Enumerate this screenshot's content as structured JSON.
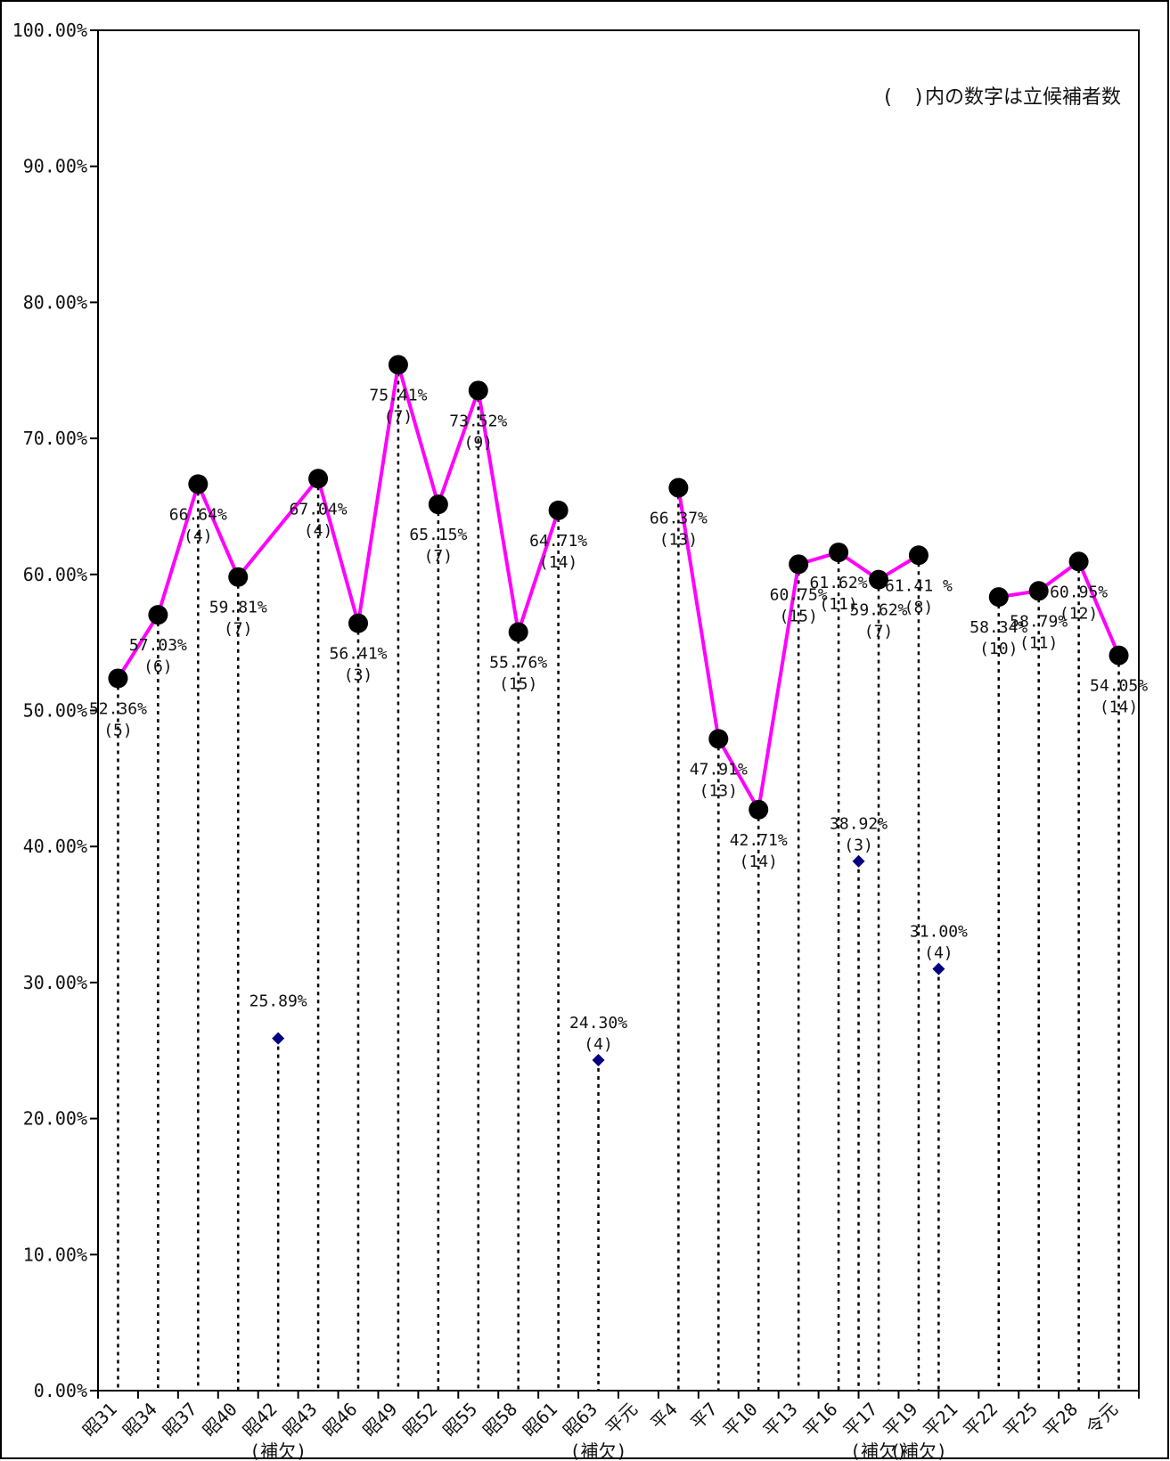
{
  "chart_data": {
    "type": "line",
    "note": "(　)内の数字は立候補者数",
    "ylim": [
      0,
      1.0
    ],
    "y_ticks": [
      "0.00%",
      "10.00%",
      "20.00%",
      "30.00%",
      "40.00%",
      "50.00%",
      "60.00%",
      "70.00%",
      "80.00%",
      "90.00%",
      "100.00%"
    ],
    "y_tick_values": [
      0,
      0.1,
      0.2,
      0.3,
      0.4,
      0.5,
      0.6,
      0.7,
      0.8,
      0.9,
      1.0
    ],
    "x_labels": [
      "昭31",
      "昭34",
      "昭37",
      "昭40",
      "昭42",
      "昭43",
      "昭46",
      "昭49",
      "昭52",
      "昭55",
      "昭58",
      "昭61",
      "昭63",
      "平元",
      "平4",
      "平7",
      "平10",
      "平13",
      "平16",
      "平17",
      "平19",
      "平21",
      "平22",
      "平25",
      "平28",
      "令元"
    ],
    "x_sublabels": [
      "",
      "",
      "",
      "",
      "(補欠)",
      "",
      "",
      "",
      "",
      "",
      "",
      "",
      "(補欠)",
      "",
      "",
      "",
      "",
      "",
      "",
      "(補欠)",
      "(補欠)",
      "",
      "",
      "",
      "",
      ""
    ],
    "series": [
      {
        "marker": "circle",
        "color": "#ff00ff",
        "points": [
          {
            "x": 0,
            "y": 52.36,
            "label": "52.36%",
            "count": "(5)"
          },
          {
            "x": 1,
            "y": 57.03,
            "label": "57.03%",
            "count": "(6)"
          },
          {
            "x": 2,
            "y": 66.64,
            "label": "66.64%",
            "count": "(4)"
          },
          {
            "x": 3,
            "y": 59.81,
            "label": "59.81%",
            "count": "(7)"
          },
          null,
          {
            "x": 5,
            "y": 67.04,
            "label": "67.04%",
            "count": "(4)"
          },
          {
            "x": 6,
            "y": 56.41,
            "label": "56.41%",
            "count": "(3)"
          },
          {
            "x": 7,
            "y": 75.41,
            "label": "75.41%",
            "count": "(7)"
          },
          {
            "x": 8,
            "y": 65.15,
            "label": "65.15%",
            "count": "(7)"
          },
          {
            "x": 9,
            "y": 73.52,
            "label": "73.52%",
            "count": "(9)"
          },
          {
            "x": 10,
            "y": 55.76,
            "label": "55.76%",
            "count": "(15)"
          },
          {
            "x": 11,
            "y": 64.71,
            "label": "64.71%",
            "count": "(14)"
          }
        ]
      },
      {
        "marker": "circle",
        "color": "#ff00ff",
        "points": [
          {
            "x": 14,
            "y": 66.37,
            "label": "66.37%",
            "count": "(13)"
          },
          {
            "x": 15,
            "y": 47.91,
            "label": "47.91%",
            "count": "(13)"
          },
          {
            "x": 16,
            "y": 42.71,
            "label": "42.71%",
            "count": "(14)"
          },
          {
            "x": 17,
            "y": 60.75,
            "label": "60.75%",
            "count": "(15)"
          },
          {
            "x": 18,
            "y": 61.62,
            "label": "61.62%",
            "count": "(11)"
          },
          {
            "x": 19,
            "y": 59.62,
            "label": "59.62%",
            "count": "(7)"
          },
          {
            "x": 20,
            "y": 61.41,
            "label": "61.41 %",
            "count": "(8)"
          }
        ]
      },
      {
        "marker": "circle",
        "color": "#ff00ff",
        "points": [
          {
            "x": 22,
            "y": 58.34,
            "label": "58.34%",
            "count": "(10)"
          },
          {
            "x": 23,
            "y": 58.79,
            "label": "58.79%",
            "count": "(11)"
          },
          {
            "x": 24,
            "y": 60.95,
            "label": "60.95%",
            "count": "(12)"
          },
          {
            "x": 25,
            "y": 54.05,
            "label": "54.05%",
            "count": "(14)"
          }
        ]
      }
    ],
    "by_elections": {
      "marker": "diamond",
      "color": "#000080",
      "points": [
        {
          "x": 4,
          "y": 25.89,
          "label": "25.89%",
          "count": ""
        },
        {
          "x": 12,
          "y": 24.3,
          "label": "24.30%",
          "count": "(4)"
        },
        {
          "x": 18.5,
          "y": 38.92,
          "label": "38.92%",
          "count": "(3)"
        },
        {
          "x": 20.5,
          "y": 31.0,
          "label": "31.00%",
          "count": "(4)"
        }
      ]
    }
  }
}
